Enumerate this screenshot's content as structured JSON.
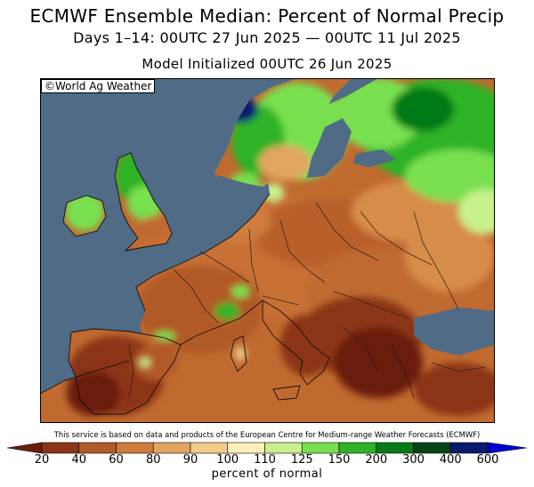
{
  "header": {
    "title": "ECMWF Ensemble Median: Percent of Normal Precip",
    "period": "Days 1–14: 00UTC 27 Jun 2025 — 00UTC 11 Jul 2025",
    "init": "Model Initialized 00UTC 26 Jun 2025"
  },
  "map": {
    "copyright": "©World Ag Weather",
    "region": "Europe",
    "ocean_color": "#4f6b86"
  },
  "footer": {
    "disclaimer": "This service is based on data and products of the European Centre for Medium-range Weather Forecasts (ECMWF)"
  },
  "legend": {
    "label": "percent of normal",
    "ticks": [
      "20",
      "40",
      "60",
      "80",
      "90",
      "100",
      "110",
      "125",
      "150",
      "200",
      "300",
      "400",
      "600"
    ],
    "colors": [
      "#6a1e10",
      "#8c3414",
      "#b25a28",
      "#cf7b3c",
      "#e1a560",
      "#f0cc88",
      "#fbf0b8",
      "#c8f08c",
      "#78e050",
      "#2eb228",
      "#057a14",
      "#044418",
      "#0a1a6e",
      "#0000cc"
    ]
  }
}
